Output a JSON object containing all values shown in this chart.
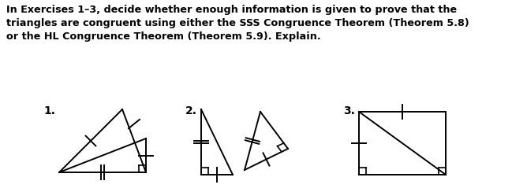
{
  "background_color": "#ffffff",
  "text_block": "In Exercises 1–3, decide whether enough information is given to prove that the\ntriangles are congruent using either the SSS Congruence Theorem (Theorem 5.8)\nor the HL Congruence Theorem (Theorem 5.9). Explain.",
  "text_fontsize": 9.2,
  "label1": "1.",
  "label2": "2.",
  "label3": "3.",
  "fig_width": 6.49,
  "fig_height": 2.44,
  "line_color": "#000000",
  "line_width": 1.4
}
